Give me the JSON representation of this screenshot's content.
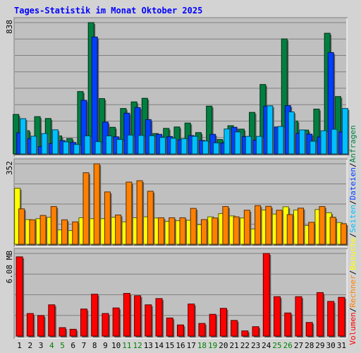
{
  "chart_data": {
    "type": "bar",
    "title": "Tages-Statistik im Monat Oktober 2025",
    "categories": [
      "1",
      "2",
      "3",
      "4",
      "5",
      "6",
      "7",
      "8",
      "9",
      "10",
      "11",
      "12",
      "13",
      "14",
      "15",
      "16",
      "17",
      "18",
      "19",
      "20",
      "21",
      "22",
      "23",
      "24",
      "25",
      "26",
      "27",
      "28",
      "29",
      "30",
      "31"
    ],
    "weekend_days": [
      "4",
      "5",
      "11",
      "12",
      "18",
      "19",
      "25",
      "26"
    ],
    "colors": {
      "title": "#0000ff",
      "weekday_label": "#000000",
      "weekend_label": "#008000",
      "panel_bg": "#c0c0c0",
      "page_bg": "#d3d3d3",
      "grid": "#808080"
    },
    "legend_right": [
      {
        "text": "Anfragen",
        "color": "#008040"
      },
      {
        "text": "Dateien",
        "color": "#0040ff"
      },
      {
        "text": "Seiten",
        "color": "#00c0ff"
      },
      {
        "text": "Besuche",
        "color": "#ffff00"
      },
      {
        "text": "Rechner",
        "color": "#ff8000"
      },
      {
        "text": "Volumen",
        "color": "#ff0000"
      }
    ],
    "legend_separator": "/",
    "panels": [
      {
        "name": "requests",
        "ymax_label": "838",
        "ymax": 838,
        "series": [
          {
            "name": "Anfragen",
            "color": "#008040",
            "values": [
              252,
              148,
              238,
              226,
              115,
              98,
              398,
              838,
              353,
              170,
              290,
              332,
              355,
              130,
              163,
              172,
              197,
              136,
              305,
              92,
              180,
              158,
              265,
              443,
              103,
              734,
              210,
              152,
              286,
              770,
              366
            ]
          },
          {
            "name": "Dateien",
            "color": "#0040ff",
            "values": [
              135,
              97,
              47,
              66,
              85,
              73,
              342,
              746,
              203,
              109,
              260,
              296,
              219,
              125,
              111,
              90,
              117,
              86,
              125,
              69,
              170,
              110,
              87,
              305,
              172,
              308,
              131,
              126,
              108,
              647,
              140
            ]
          },
          {
            "name": "Seiten",
            "color": "#00c0ff",
            "values": [
              225,
              113,
              130,
              154,
              77,
              60,
              115,
              78,
              115,
              92,
              120,
              118,
              116,
              105,
              100,
              97,
              112,
              82,
              70,
              159,
              140,
              112,
              112,
              307,
              175,
              268,
              153,
              81,
              148,
              157,
              290
            ]
          }
        ]
      },
      {
        "name": "visits",
        "ymax_label": "352",
        "ymax": 352,
        "series": [
          {
            "name": "Besuche",
            "color": "#ffff00",
            "values": [
              245,
              108,
              112,
              118,
              63,
              60,
              116,
              112,
              112,
              118,
              98,
              116,
              120,
              115,
              100,
              103,
              105,
              86,
              120,
              134,
              124,
              115,
              67,
              150,
              132,
              164,
              150,
              82,
              152,
              138,
              95
            ]
          },
          {
            "name": "Rechner",
            "color": "#ff8000",
            "values": [
              155,
              107,
              126,
              165,
              107,
              98,
              313,
              352,
              229,
              128,
              272,
              278,
              232,
              116,
              116,
              116,
              157,
              108,
              115,
              165,
              120,
              149,
              169,
              166,
              149,
              130,
              158,
              96,
              165,
              118,
              90
            ]
          }
        ]
      },
      {
        "name": "volume",
        "ymax_label": "6.08 MB",
        "ymax": 6.08,
        "series": [
          {
            "name": "Volumen",
            "color": "#ff0000",
            "values": [
              5.83,
              1.66,
              1.51,
              2.3,
              0.62,
              0.5,
              1.99,
              3.08,
              1.66,
              2.07,
              3.14,
              2.97,
              2.3,
              2.76,
              1.33,
              0.82,
              2.36,
              0.93,
              1.6,
              2.04,
              1.15,
              0.38,
              0.69,
              6.08,
              2.9,
              1.7,
              2.9,
              1.0,
              3.2,
              2.55,
              2.85
            ]
          }
        ]
      }
    ]
  }
}
